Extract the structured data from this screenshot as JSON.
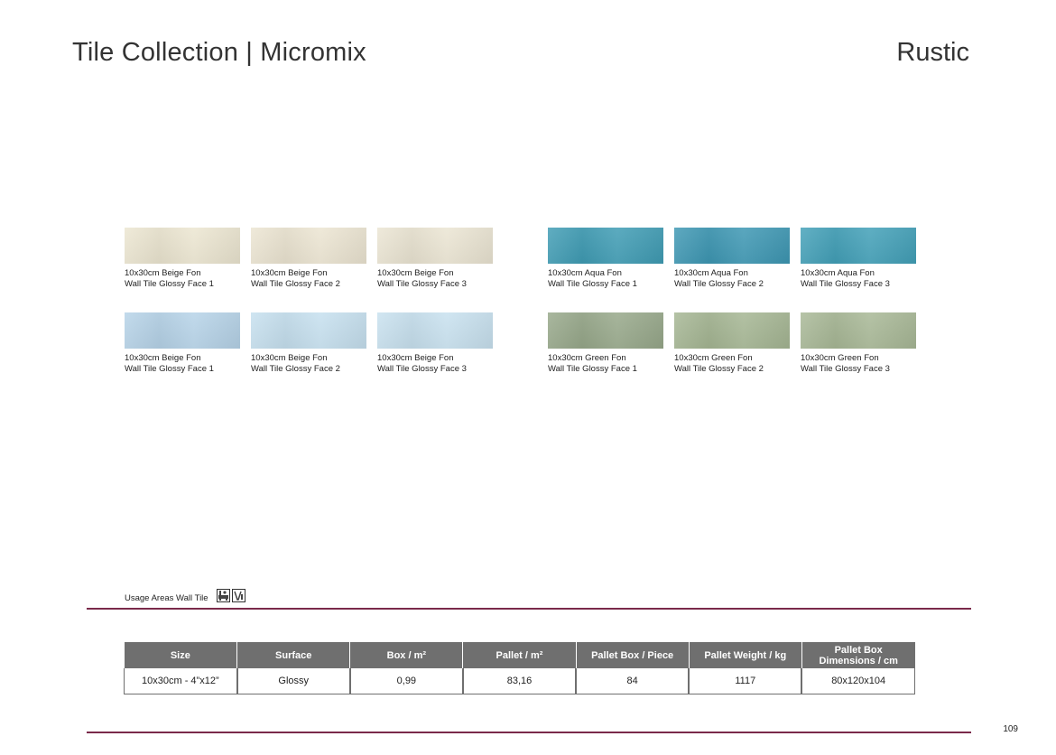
{
  "header": {
    "title": "Tile Collection | Micromix",
    "category": "Rustic"
  },
  "tiles": [
    {
      "color": "#ece6d1",
      "line1": "10x30cm Beige Fon",
      "line2": "Wall Tile Glossy Face 1"
    },
    {
      "color": "#ece5d2",
      "line1": "10x30cm Beige Fon",
      "line2": "Wall Tile Glossy Face 2"
    },
    {
      "color": "#ebe5d3",
      "line1": "10x30cm Beige Fon",
      "line2": "Wall Tile Glossy Face 3"
    },
    {
      "color": "#3f9cb4",
      "line1": "10x30cm Aqua Fon",
      "line2": "Wall Tile Glossy Face 1"
    },
    {
      "color": "#3d97b3",
      "line1": "10x30cm Aqua Fon",
      "line2": "Wall Tile Glossy Face 2"
    },
    {
      "color": "#42a0b8",
      "line1": "10x30cm Aqua Fon",
      "line2": "Wall Tile Glossy Face 3"
    },
    {
      "color": "#b6d3e8",
      "line1": "10x30cm Beige Fon",
      "line2": "Wall Tile Glossy Face 1"
    },
    {
      "color": "#c6e0ef",
      "line1": "10x30cm Beige Fon",
      "line2": "Wall Tile Glossy Face 2"
    },
    {
      "color": "#c8e1ef",
      "line1": "10x30cm Beige Fon",
      "line2": "Wall Tile Glossy Face 3"
    },
    {
      "color": "#97a88a",
      "line1": "10x30cm Green Fon",
      "line2": "Wall Tile Glossy Face 1"
    },
    {
      "color": "#a5b693",
      "line1": "10x30cm Green Fon",
      "line2": "Wall Tile Glossy Face 2"
    },
    {
      "color": "#a8b896",
      "line1": "10x30cm Green Fon",
      "line2": "Wall Tile Glossy Face 3"
    }
  ],
  "usage": {
    "label": "Usage Areas Wall Tile",
    "icons": [
      "bathroom-icon",
      "kitchen-icon"
    ]
  },
  "spec_table": {
    "headers": [
      "Size",
      "Surface",
      "Box / m²",
      "Pallet / m²",
      "Pallet Box / Piece",
      "Pallet Weight / kg",
      "Pallet Box Dimensions / cm"
    ],
    "row": [
      "10x30cm - 4”x12”",
      "Glossy",
      "0,99",
      "83,16",
      "84",
      "1117",
      "80x120x104"
    ]
  },
  "footer": {
    "page_number": "109"
  },
  "colors": {
    "accent_rule": "#7a2a4a",
    "table_header": "#6f6f6f"
  }
}
